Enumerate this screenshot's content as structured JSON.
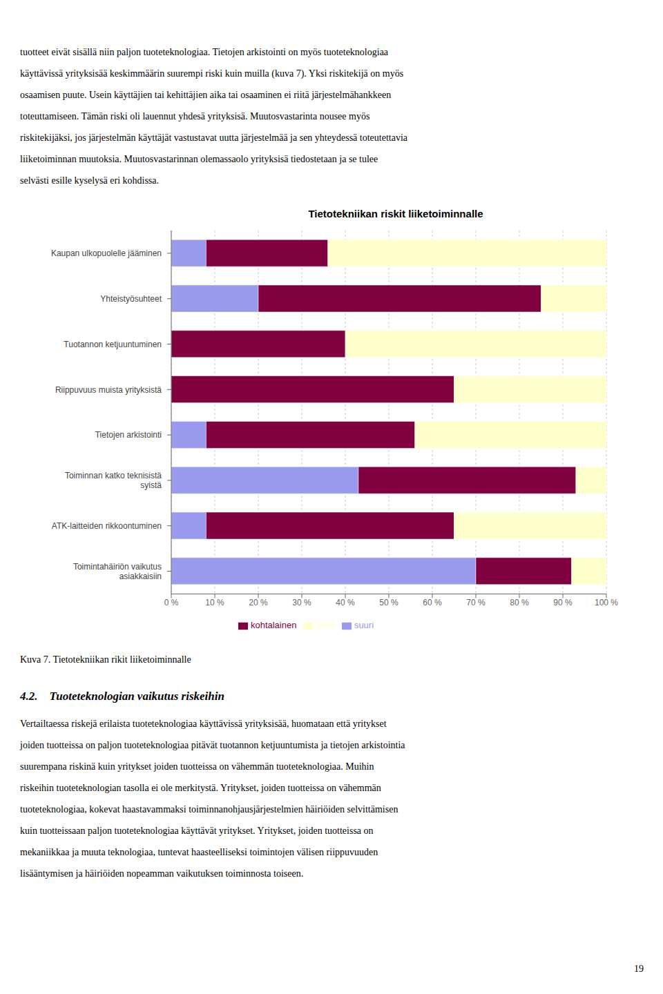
{
  "chart_data": {
    "type": "bar",
    "orientation": "horizontal",
    "stacked": true,
    "title": "Tietotekniikan riskit liiketoiminnalle",
    "categories": [
      "Kaupan ulkopuolelle jääminen",
      "Yhteistyösuhteet",
      "Tuotannon ketjuuntuminen",
      "Riippuvuus muista yrityksistä",
      "Tietojen arkistointi",
      "Toiminnan katko teknisistä\nsyistä",
      "ATK-laitteiden rikkoontuminen",
      "Toimintahäiriön vaikutus\nasiakkaisiin"
    ],
    "series": [
      {
        "name": "suuri",
        "color": "#9999ee",
        "values": [
          8,
          20,
          0,
          0,
          8,
          43,
          8,
          70
        ]
      },
      {
        "name": "kohtalainen",
        "color": "#800040",
        "values": [
          28,
          65,
          40,
          65,
          48,
          50,
          57,
          22
        ]
      },
      {
        "name": "pieni",
        "color": "#ffffcc",
        "values": [
          64,
          15,
          60,
          35,
          44,
          7,
          35,
          8
        ]
      }
    ],
    "xlim": [
      0,
      100
    ],
    "xticks": [
      {
        "value": 0,
        "label": "0 %"
      },
      {
        "value": 10,
        "label": "10 %"
      },
      {
        "value": 20,
        "label": "20 %"
      },
      {
        "value": 30,
        "label": "30 %"
      },
      {
        "value": 40,
        "label": "40 %"
      },
      {
        "value": 50,
        "label": "50 %"
      },
      {
        "value": 60,
        "label": "60 %"
      },
      {
        "value": 70,
        "label": "70 %"
      },
      {
        "value": 80,
        "label": "80 %"
      },
      {
        "value": 90,
        "label": "90 %"
      },
      {
        "value": 100,
        "label": "100 %"
      }
    ],
    "grid": true,
    "legend": "bottom",
    "annotations": [
      "tuotteet eivät sisällä niin paljon tuoteteknologiaa. Tietojen arkistointi on myös tuoteteknologiaa",
      "käyttävissä yrityksisää keskimmäärin suurempi riski kuin muilla (kuva 7). Yksi riskitekijä on myös",
      "osaamisen puute. Usein käyttäjien tai kehittäjien aika tai osaaminen ei riitä järjestelmähankkeen",
      "toteuttamiseen. Tämän riski oli lauennut yhdesä yrityksisä. Muutosvastarinta nousee myös",
      "riskitekijäksi, jos järjestelmän käyttäjät vastustavat uutta järjestelmää ja sen yhteydessä toteutettavia",
      "liiketoiminnan muutoksia. Muutosvastarinnan olemassaolo yrityksisä tiedostetaan ja se tulee",
      "selvästi esille kyselysä eri kohdissa.",
      "Kuva 7. Tietotekniikan rikit liiketoiminnalle",
      "4.2. Tuoteteknologian vaikutus riskeihin",
      "Vertailtaessa riskejä erilaista tuoteteknologiaa käyttävissä yrityksisää, huomataan että yritykset",
      "joiden tuotteissa on paljon tuoteteknologiaa pitävät tuotannon ketjuuntumista ja tietojen arkistointia",
      "suurempana riskinä kuin yritykset joiden tuotteissa on vähemmän tuoteteknologiaa.  Muihin",
      "riskeihin tuoteteknologian tasolla ei ole merkitystä.  Yritykset, joiden tuotteissa on vähemmän",
      "tuoteteknologiaa, kokevat haastavammaksi toiminnanohjausjärjestelmien häiriöiden selvittämisen",
      "kuin tuotteissaan paljon tuoteteknologiaa käyttävät yritykset.  Yritykset, joiden tuotteissa on",
      "mekaniikkaa ja muuta teknologiaa, tuntevat haasteelliseksi toimintojen välisen riippuvuuden",
      "lisääntymisen ja häiriöiden nopeamman vaikutuksen toiminnosta toiseen.",
      "19"
    ]
  }
}
